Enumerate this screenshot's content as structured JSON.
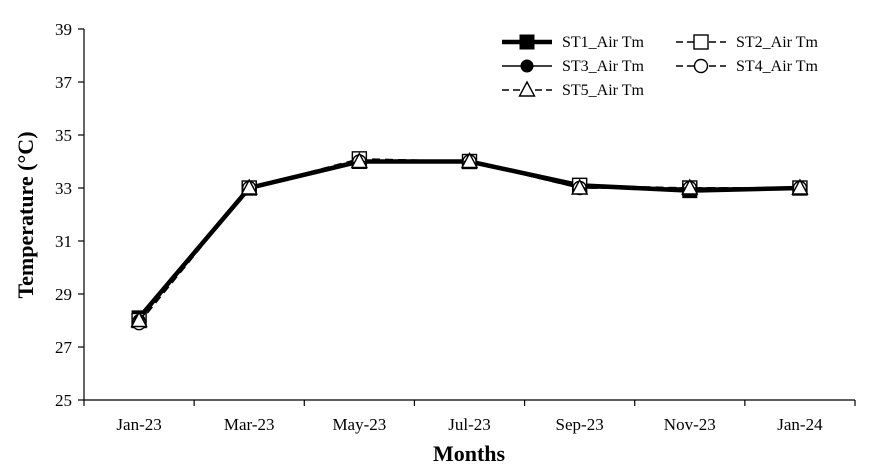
{
  "chart_data": {
    "type": "line",
    "title": "",
    "xlabel": "Months",
    "ylabel": "Temperature (°C)",
    "categories": [
      "Jan-23",
      "Mar-23",
      "May-23",
      "Jul-23",
      "Sep-23",
      "Nov-23",
      "Jan-24"
    ],
    "ylim": [
      25,
      39
    ],
    "yticks": [
      25,
      27,
      29,
      31,
      33,
      35,
      37,
      39
    ],
    "grid": false,
    "legend_position": "top-right",
    "series": [
      {
        "name": "ST1_Air Tm",
        "values": [
          28.1,
          33.0,
          34.0,
          34.0,
          33.1,
          32.9,
          33.0
        ],
        "marker": "filled-square",
        "line": "solid-thick"
      },
      {
        "name": "ST2_Air Tm",
        "values": [
          28.0,
          33.0,
          34.1,
          34.0,
          33.1,
          33.0,
          33.0
        ],
        "marker": "open-square",
        "line": "dashed"
      },
      {
        "name": "ST3_Air Tm",
        "values": [
          28.0,
          33.0,
          34.0,
          34.0,
          33.0,
          33.0,
          33.0
        ],
        "marker": "filled-circle",
        "line": "solid"
      },
      {
        "name": "ST4_Air Tm",
        "values": [
          27.9,
          33.0,
          34.0,
          34.0,
          33.0,
          33.0,
          33.0
        ],
        "marker": "open-circle",
        "line": "dashed"
      },
      {
        "name": "ST5_Air Tm",
        "values": [
          28.0,
          33.0,
          34.0,
          34.0,
          33.0,
          33.0,
          33.0
        ],
        "marker": "open-triangle",
        "line": "dashed"
      }
    ]
  }
}
